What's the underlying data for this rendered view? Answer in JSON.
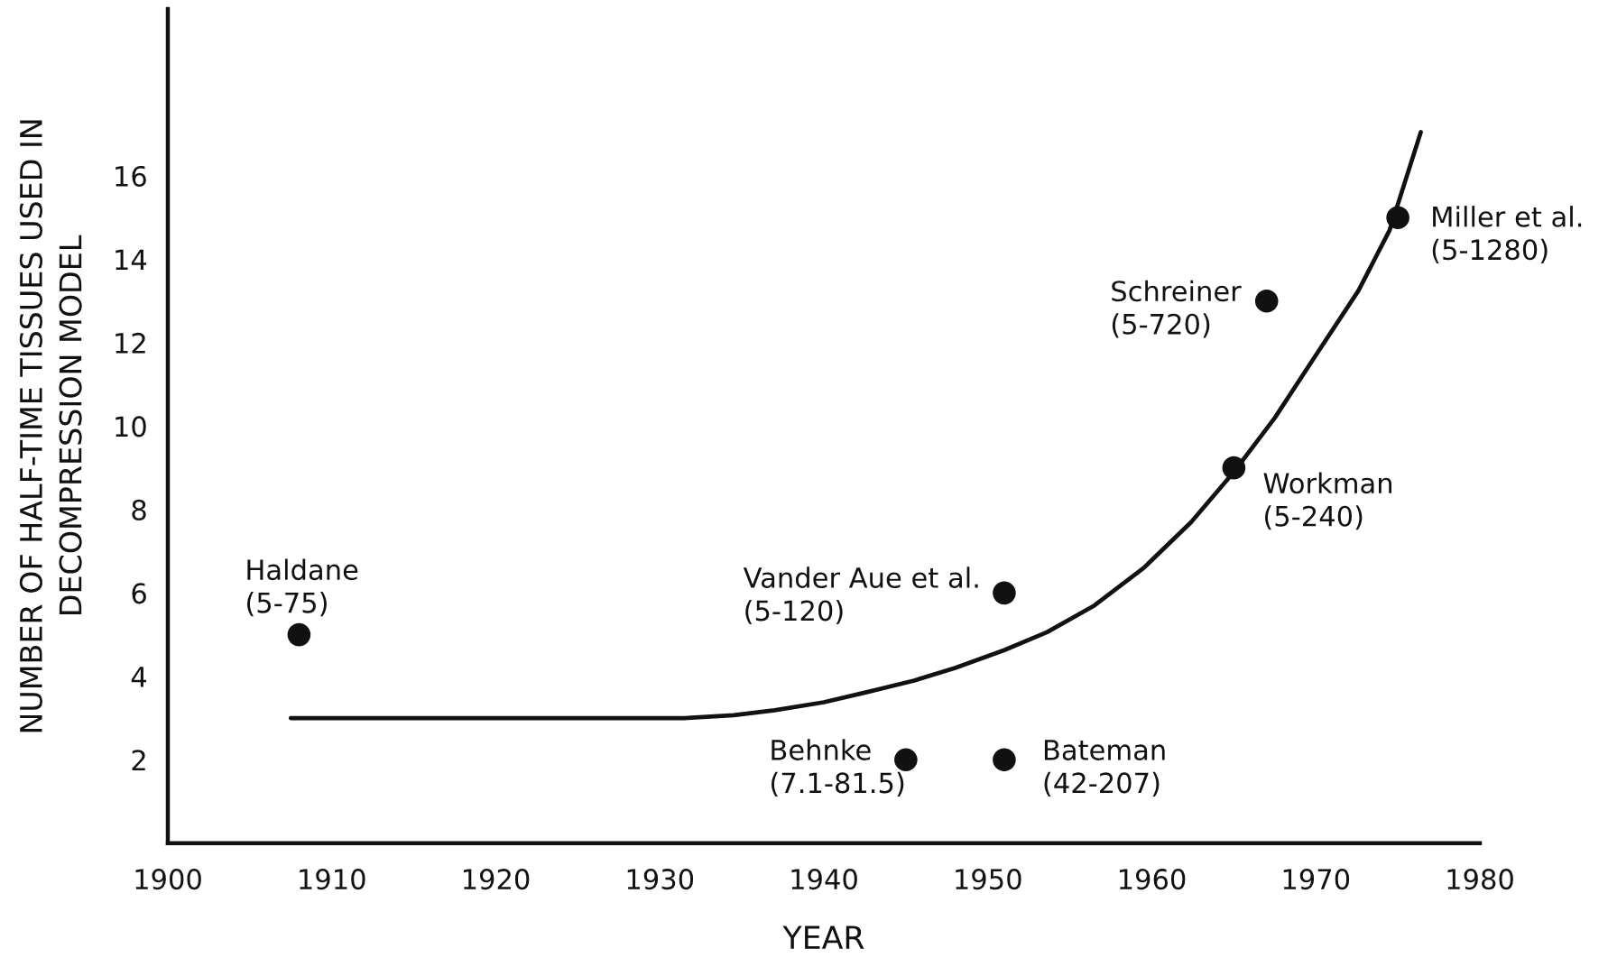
{
  "chart_data": {
    "type": "scatter",
    "xlabel": "YEAR",
    "ylabel": "NUMBER OF HALF-TIME TISSUES USED IN\nDECOMPRESSION MODEL",
    "xlim": [
      1900,
      1980
    ],
    "ylim": [
      0,
      20
    ],
    "xticks": [
      1900,
      1910,
      1920,
      1930,
      1940,
      1950,
      1960,
      1970,
      1980
    ],
    "yticks": [
      2,
      4,
      6,
      8,
      10,
      12,
      14,
      16
    ],
    "series": [
      {
        "color": "#111111",
        "marker": "circle",
        "x": [
          1908,
          1945,
          1951,
          1951,
          1965,
          1967,
          1975
        ],
        "values": [
          5,
          2,
          6,
          2,
          9,
          13,
          15
        ]
      },
      {
        "type": "line",
        "color": "#111111",
        "line_style": "solid",
        "x": [
          1907.5,
          1931.5,
          1934.5,
          1937,
          1940,
          1942.6,
          1945.5,
          1948,
          1951,
          1953.6,
          1956.5,
          1959.5,
          1962.4,
          1965,
          1967.5,
          1970,
          1972.6,
          1974.5,
          1976.4
        ],
        "values": [
          3.0,
          3.0,
          3.07,
          3.19,
          3.38,
          3.62,
          3.9,
          4.2,
          4.63,
          5.06,
          5.7,
          6.6,
          7.7,
          8.9,
          10.2,
          11.7,
          13.25,
          14.7,
          17.05
        ]
      }
    ],
    "annotations": [
      {
        "text": "Haldane\n(5-75)",
        "x": 1908,
        "y": 5
      },
      {
        "text": "Behnke\n(7.1-81.5)",
        "x": 1945,
        "y": 2
      },
      {
        "text": "Vander Aue et al.\n(5-120)",
        "x": 1951,
        "y": 6
      },
      {
        "text": "Bateman\n(42-207)",
        "x": 1951,
        "y": 2
      },
      {
        "text": "Workman\n(5-240)",
        "x": 1965,
        "y": 9
      },
      {
        "text": "Schreiner\n(5-720)",
        "x": 1967,
        "y": 13
      },
      {
        "text": "Miller et al.\n(5-1280)",
        "x": 1975,
        "y": 15
      }
    ]
  }
}
